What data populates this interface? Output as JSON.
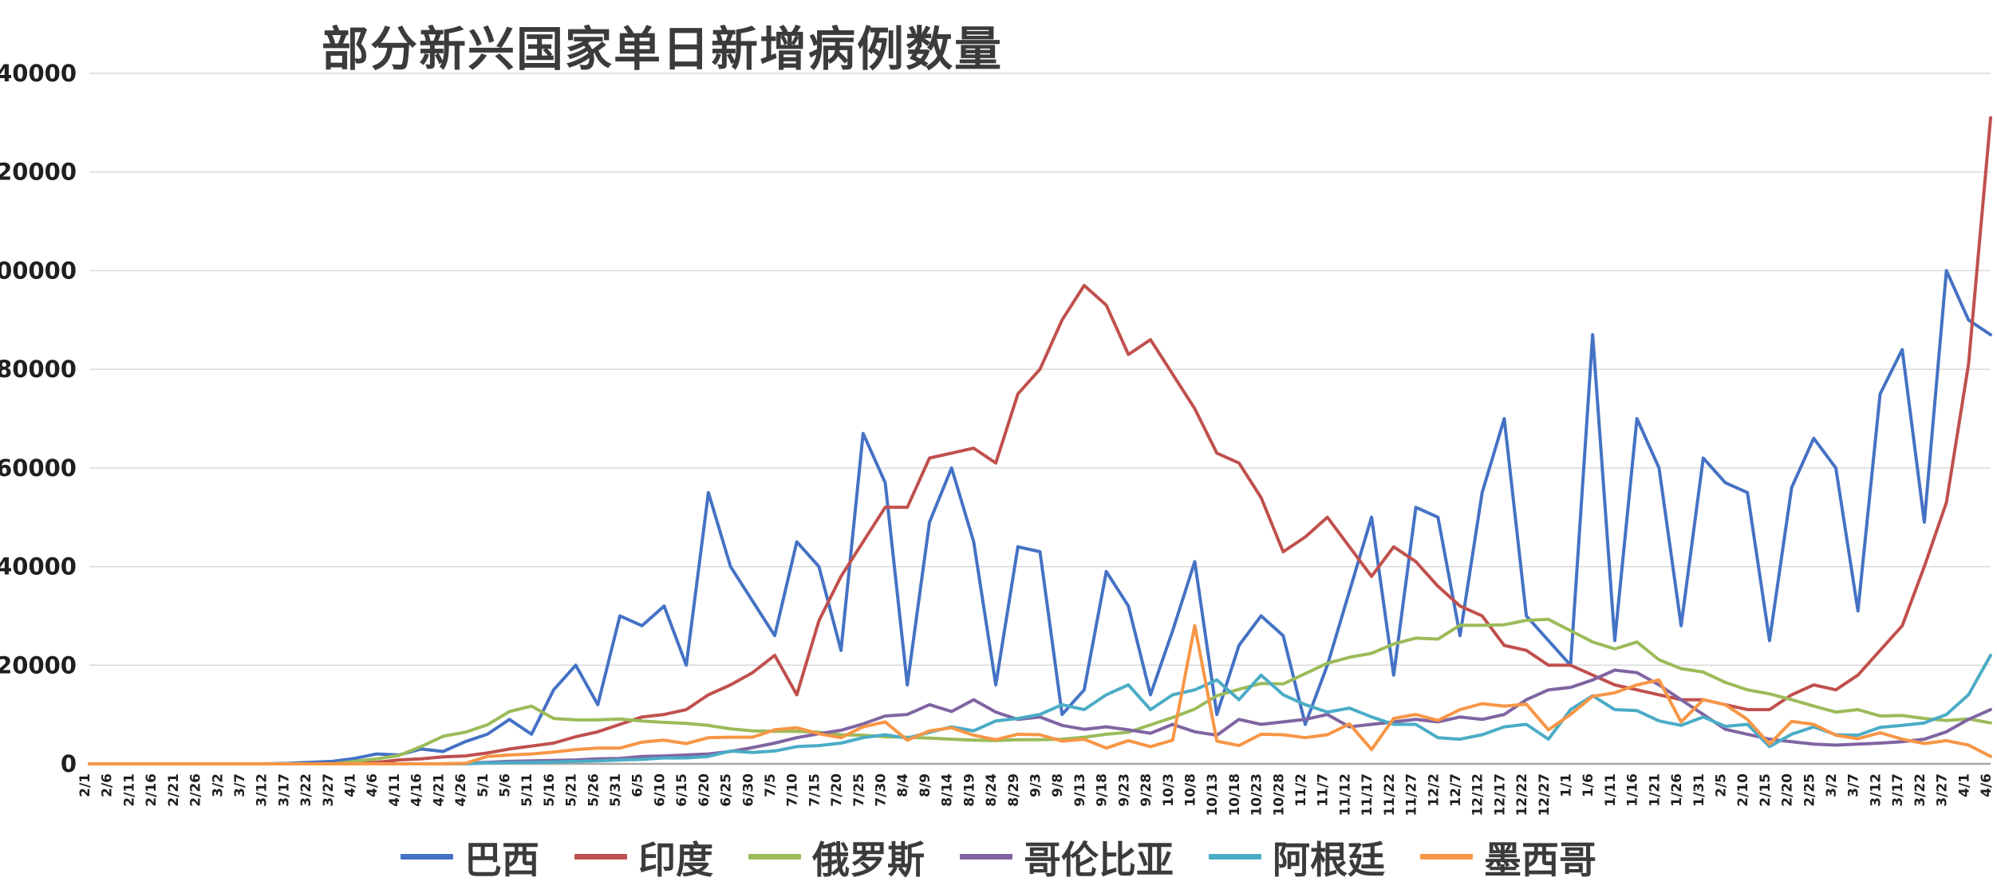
{
  "chart_data": {
    "type": "line",
    "title": "部分新兴国家单日新增病例数量",
    "xlabel": "",
    "ylabel": "",
    "ylim": [
      0,
      140000
    ],
    "ytick_step": 20000,
    "grid": true,
    "legend_position": "bottom",
    "x": [
      "2/1",
      "2/6",
      "2/11",
      "2/16",
      "2/21",
      "2/26",
      "3/2",
      "3/7",
      "3/12",
      "3/17",
      "3/22",
      "3/27",
      "4/1",
      "4/6",
      "4/11",
      "4/16",
      "4/21",
      "4/26",
      "5/1",
      "5/6",
      "5/11",
      "5/16",
      "5/21",
      "5/26",
      "5/31",
      "6/5",
      "6/10",
      "6/15",
      "6/20",
      "6/25",
      "6/30",
      "7/5",
      "7/10",
      "7/15",
      "7/20",
      "7/25",
      "7/30",
      "8/4",
      "8/9",
      "8/14",
      "8/19",
      "8/24",
      "8/29",
      "9/3",
      "9/8",
      "9/13",
      "9/18",
      "9/23",
      "9/28",
      "10/3",
      "10/8",
      "10/13",
      "10/18",
      "10/23",
      "10/28",
      "11/2",
      "11/7",
      "11/12",
      "11/17",
      "11/22",
      "11/27",
      "12/2",
      "12/7",
      "12/12",
      "12/17",
      "12/22",
      "12/27",
      "1/1",
      "1/6",
      "1/11",
      "1/16",
      "1/21",
      "1/26",
      "1/31",
      "2/5",
      "2/10",
      "2/15",
      "2/20",
      "2/25",
      "3/2",
      "3/7",
      "3/12",
      "3/17",
      "3/22",
      "3/27",
      "4/1",
      "4/6"
    ],
    "series": [
      {
        "name": "巴西",
        "color": "#4472C4",
        "values": [
          0,
          0,
          0,
          0,
          0,
          0,
          0,
          0,
          0,
          100,
          300,
          500,
          1100,
          2000,
          1800,
          3000,
          2500,
          4500,
          6000,
          9000,
          6000,
          15000,
          20000,
          12000,
          30000,
          28000,
          32000,
          20000,
          55000,
          40000,
          33000,
          26000,
          45000,
          40000,
          23000,
          67000,
          57000,
          16000,
          49000,
          60000,
          45000,
          16000,
          44000,
          43000,
          10000,
          15000,
          39000,
          32000,
          14000,
          27000,
          41000,
          10000,
          24000,
          30000,
          26000,
          8000,
          20000,
          35000,
          50000,
          18000,
          52000,
          50000,
          26000,
          55000,
          70000,
          30000,
          25000,
          20000,
          87000,
          25000,
          70000,
          60000,
          28000,
          62000,
          57000,
          55000,
          25000,
          56000,
          66000,
          60000,
          31000,
          75000,
          84000,
          49000,
          100000,
          90000,
          87000
        ]
      },
      {
        "name": "印度",
        "color": "#C0504D",
        "values": [
          0,
          0,
          0,
          0,
          0,
          0,
          0,
          0,
          0,
          0,
          0,
          50,
          100,
          300,
          800,
          1000,
          1400,
          1600,
          2200,
          3000,
          3600,
          4200,
          5500,
          6500,
          8000,
          9500,
          10000,
          11000,
          14000,
          16000,
          18500,
          22000,
          14000,
          29000,
          38000,
          45000,
          52000,
          52000,
          62000,
          63000,
          64000,
          61000,
          75000,
          80000,
          90000,
          97000,
          93000,
          83000,
          86000,
          79000,
          72000,
          63000,
          61000,
          54000,
          43000,
          46000,
          50000,
          44000,
          38000,
          44000,
          41000,
          36000,
          32000,
          30000,
          24000,
          23000,
          20000,
          20000,
          18000,
          16000,
          15000,
          14000,
          13000,
          13000,
          12000,
          11000,
          11000,
          14000,
          16000,
          15000,
          18000,
          23000,
          28000,
          40000,
          53000,
          81000,
          131000
        ]
      },
      {
        "name": "俄罗斯",
        "color": "#9BBB59",
        "values": [
          0,
          0,
          0,
          0,
          0,
          0,
          0,
          0,
          0,
          0,
          0,
          0,
          500,
          1000,
          1700,
          3500,
          5600,
          6400,
          7900,
          10600,
          11700,
          9200,
          8900,
          8900,
          9100,
          8700,
          8400,
          8200,
          7800,
          7100,
          6700,
          6600,
          6600,
          6400,
          5900,
          5800,
          5500,
          5400,
          5200,
          5000,
          4800,
          4700,
          4900,
          4900,
          5000,
          5400,
          6000,
          6400,
          7900,
          9400,
          11100,
          13800,
          15100,
          16300,
          16200,
          18300,
          20400,
          21600,
          22400,
          24300,
          25500,
          25300,
          28100,
          28100,
          28200,
          29100,
          29300,
          27000,
          24700,
          23300,
          24700,
          21100,
          19300,
          18600,
          16500,
          15000,
          14200,
          13000,
          11700,
          10500,
          11000,
          9700,
          9800,
          9200,
          8800,
          9100,
          8300
        ]
      },
      {
        "name": "哥伦比亚",
        "color": "#8064A2",
        "values": [
          0,
          0,
          0,
          0,
          0,
          0,
          0,
          0,
          0,
          0,
          0,
          0,
          0,
          0,
          0,
          0,
          0,
          100,
          300,
          500,
          600,
          700,
          800,
          1000,
          1100,
          1500,
          1600,
          1800,
          2000,
          2500,
          3300,
          4200,
          5300,
          6100,
          6800,
          8100,
          9700,
          10000,
          12000,
          10600,
          13000,
          10500,
          9000,
          9500,
          7800,
          7000,
          7500,
          6900,
          6200,
          8000,
          6500,
          5800,
          9000,
          8000,
          8500,
          9000,
          10000,
          7500,
          8000,
          8500,
          9000,
          8500,
          9500,
          9000,
          10000,
          13000,
          15000,
          15500,
          17000,
          19000,
          18500,
          16000,
          13000,
          10000,
          7000,
          6000,
          5000,
          4500,
          4000,
          3800,
          4000,
          4200,
          4500,
          5000,
          6500,
          9000,
          11000
        ]
      },
      {
        "name": "阿根廷",
        "color": "#4BACC6",
        "values": [
          0,
          0,
          0,
          0,
          0,
          0,
          0,
          0,
          0,
          0,
          0,
          0,
          0,
          0,
          0,
          0,
          0,
          0,
          200,
          250,
          300,
          350,
          500,
          600,
          800,
          900,
          1200,
          1200,
          1500,
          2600,
          2300,
          2600,
          3500,
          3700,
          4200,
          5300,
          5900,
          5200,
          6400,
          7500,
          6700,
          8700,
          9200,
          10000,
          12000,
          11000,
          14000,
          16000,
          11000,
          14000,
          15000,
          17000,
          13000,
          18000,
          14000,
          12000,
          10500,
          11300,
          9500,
          8000,
          8000,
          5300,
          5000,
          5900,
          7500,
          8000,
          5000,
          11000,
          13800,
          11000,
          10800,
          8700,
          7800,
          9500,
          7600,
          8000,
          3500,
          6000,
          7500,
          5900,
          5800,
          7400,
          7800,
          8300,
          10000,
          14000,
          22000
        ]
      },
      {
        "name": "墨西哥",
        "color": "#F79646",
        "values": [
          0,
          0,
          0,
          0,
          0,
          0,
          0,
          0,
          0,
          0,
          0,
          0,
          0,
          0,
          0,
          0,
          0,
          100,
          1500,
          1800,
          2000,
          2400,
          2900,
          3200,
          3200,
          4400,
          4800,
          4100,
          5300,
          5400,
          5400,
          6900,
          7300,
          6100,
          5300,
          7500,
          8500,
          4800,
          6700,
          7300,
          5800,
          4900,
          6000,
          5900,
          4600,
          5000,
          3200,
          4700,
          3500,
          4800,
          28000,
          4600,
          3700,
          6000,
          5900,
          5300,
          5900,
          8100,
          2900,
          9200,
          10000,
          8800,
          11000,
          12200,
          11700,
          12100,
          6900,
          10000,
          13700,
          14400,
          16000,
          17000,
          8500,
          13000,
          12000,
          9000,
          4000,
          8600,
          8000,
          5800,
          5100,
          6300,
          5000,
          4100,
          4700,
          3800,
          1500
        ]
      }
    ]
  }
}
